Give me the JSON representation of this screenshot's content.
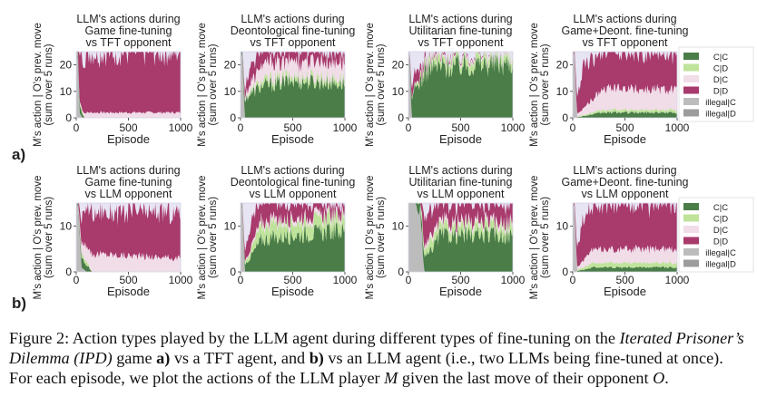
{
  "colors": {
    "CC": "#4a7d48",
    "CD": "#bfe39a",
    "DC": "#f1dde8",
    "DD": "#a83a6c",
    "illegalC": "#bcbcbc",
    "illegalD": "#9c9c9c",
    "bg": "#e7e4f3"
  },
  "row_labels": [
    "a)",
    "b)"
  ],
  "legend_labels": [
    "C|C",
    "C|D",
    "D|C",
    "D|D",
    "illegal|C",
    "illegal|D"
  ],
  "chart_data": [
    {
      "type": "area",
      "row": "a",
      "title": [
        "LLM's actions during",
        "Game fine-tuning",
        "vs TFT opponent"
      ],
      "xlabel": "Episode",
      "ylabel": [
        "M's action | O's prev. move",
        "(sum over 5 runs)"
      ],
      "xlim": [
        0,
        1000
      ],
      "ylim": [
        0,
        25
      ],
      "xticks": [
        0,
        500,
        1000
      ],
      "yticks": [
        0,
        10,
        20
      ],
      "series": [
        {
          "name": "illegal|C",
          "values": [
            {
              "x": 0,
              "y": 25
            },
            {
              "x": 15,
              "y": 25
            },
            {
              "x": 30,
              "y": 2
            },
            {
              "x": 60,
              "y": 0
            },
            {
              "x": 1000,
              "y": 0
            }
          ]
        },
        {
          "name": "C|C",
          "values": [
            {
              "x": 0,
              "y": 0
            },
            {
              "x": 30,
              "y": 3
            },
            {
              "x": 50,
              "y": 2
            },
            {
              "x": 80,
              "y": 0
            },
            {
              "x": 1000,
              "y": 0
            }
          ]
        },
        {
          "name": "C|D",
          "values": [
            {
              "x": 0,
              "y": 0
            },
            {
              "x": 30,
              "y": 1
            },
            {
              "x": 80,
              "y": 0
            },
            {
              "x": 1000,
              "y": 0
            }
          ]
        },
        {
          "name": "D|C",
          "values": [
            {
              "x": 0,
              "y": 0
            },
            {
              "x": 100,
              "y": 2
            },
            {
              "x": 1000,
              "y": 2
            }
          ]
        },
        {
          "name": "D|D",
          "values": [
            {
              "x": 0,
              "y": 0
            },
            {
              "x": 40,
              "y": 20
            },
            {
              "x": 100,
              "y": 23
            },
            {
              "x": 1000,
              "y": 23
            }
          ]
        }
      ]
    },
    {
      "type": "area",
      "row": "a",
      "title": [
        "LLM's actions during",
        "Deontological fine-tuning",
        "vs TFT opponent"
      ],
      "xlabel": "Episode",
      "ylabel": [
        "M's action | O's prev. move",
        "(sum over 5 runs)"
      ],
      "xlim": [
        0,
        1000
      ],
      "ylim": [
        0,
        25
      ],
      "xticks": [
        0,
        500,
        1000
      ],
      "yticks": [
        0,
        10,
        20
      ],
      "series": [
        {
          "name": "illegal|C",
          "values": [
            {
              "x": 0,
              "y": 25
            },
            {
              "x": 15,
              "y": 25
            },
            {
              "x": 40,
              "y": 0
            },
            {
              "x": 1000,
              "y": 0
            }
          ]
        },
        {
          "name": "C|C",
          "values": [
            {
              "x": 0,
              "y": 0
            },
            {
              "x": 60,
              "y": 8
            },
            {
              "x": 200,
              "y": 12
            },
            {
              "x": 500,
              "y": 14
            },
            {
              "x": 1000,
              "y": 13
            }
          ]
        },
        {
          "name": "C|D",
          "values": [
            {
              "x": 0,
              "y": 0
            },
            {
              "x": 200,
              "y": 2
            },
            {
              "x": 1000,
              "y": 2
            }
          ]
        },
        {
          "name": "D|C",
          "values": [
            {
              "x": 0,
              "y": 0
            },
            {
              "x": 200,
              "y": 6
            },
            {
              "x": 1000,
              "y": 6
            }
          ]
        },
        {
          "name": "D|D",
          "values": [
            {
              "x": 0,
              "y": 0
            },
            {
              "x": 100,
              "y": 6
            },
            {
              "x": 1000,
              "y": 4
            }
          ]
        }
      ]
    },
    {
      "type": "area",
      "row": "a",
      "title": [
        "LLM's actions during",
        "Utilitarian fine-tuning",
        "vs TFT opponent"
      ],
      "xlabel": "Episode",
      "ylabel": [
        "M's action | O's prev. move",
        "(sum over 5 runs)"
      ],
      "xlim": [
        0,
        1000
      ],
      "ylim": [
        0,
        25
      ],
      "xticks": [
        0,
        500,
        1000
      ],
      "yticks": [
        0,
        10,
        20
      ],
      "series": [
        {
          "name": "illegal|C",
          "values": [
            {
              "x": 0,
              "y": 25
            },
            {
              "x": 10,
              "y": 25
            },
            {
              "x": 30,
              "y": 0
            },
            {
              "x": 1000,
              "y": 0
            }
          ]
        },
        {
          "name": "C|C",
          "values": [
            {
              "x": 0,
              "y": 0
            },
            {
              "x": 50,
              "y": 10
            },
            {
              "x": 200,
              "y": 19
            },
            {
              "x": 500,
              "y": 20
            },
            {
              "x": 1000,
              "y": 21
            }
          ]
        },
        {
          "name": "C|D",
          "values": [
            {
              "x": 0,
              "y": 0
            },
            {
              "x": 200,
              "y": 3
            },
            {
              "x": 1000,
              "y": 3
            }
          ]
        },
        {
          "name": "D|C",
          "values": [
            {
              "x": 0,
              "y": 0
            },
            {
              "x": 200,
              "y": 1
            },
            {
              "x": 1000,
              "y": 1
            }
          ]
        },
        {
          "name": "D|D",
          "values": [
            {
              "x": 0,
              "y": 0
            },
            {
              "x": 50,
              "y": 5
            },
            {
              "x": 200,
              "y": 1
            },
            {
              "x": 1000,
              "y": 0
            }
          ]
        }
      ]
    },
    {
      "type": "area",
      "row": "a",
      "title": [
        "LLM's actions during",
        "Game+Deont. fine-tuning",
        "vs TFT opponent"
      ],
      "xlabel": "Episode",
      "ylabel": [
        "M's action | O's prev. move",
        "(sum over 5 runs)"
      ],
      "xlim": [
        0,
        1000
      ],
      "ylim": [
        0,
        25
      ],
      "xticks": [
        0,
        500,
        1000
      ],
      "yticks": [
        0,
        10,
        20
      ],
      "series": [
        {
          "name": "illegal|C",
          "values": [
            {
              "x": 0,
              "y": 25
            },
            {
              "x": 15,
              "y": 25
            },
            {
              "x": 40,
              "y": 0
            },
            {
              "x": 1000,
              "y": 0
            }
          ]
        },
        {
          "name": "C|C",
          "values": [
            {
              "x": 0,
              "y": 0
            },
            {
              "x": 300,
              "y": 2
            },
            {
              "x": 1000,
              "y": 2
            }
          ]
        },
        {
          "name": "C|D",
          "values": [
            {
              "x": 0,
              "y": 0
            },
            {
              "x": 300,
              "y": 1
            },
            {
              "x": 1000,
              "y": 1
            }
          ]
        },
        {
          "name": "D|C",
          "values": [
            {
              "x": 0,
              "y": 0
            },
            {
              "x": 300,
              "y": 8
            },
            {
              "x": 1000,
              "y": 8
            }
          ]
        },
        {
          "name": "D|D",
          "values": [
            {
              "x": 0,
              "y": 0
            },
            {
              "x": 100,
              "y": 15
            },
            {
              "x": 1000,
              "y": 14
            }
          ]
        }
      ]
    },
    {
      "type": "area",
      "row": "b",
      "title": [
        "LLM's actions during",
        "Game fine-tuning",
        "vs LLM opponent"
      ],
      "xlabel": "Episode",
      "ylabel": [
        "M's action | O's prev. move",
        "(sum over 5 runs)"
      ],
      "xlim": [
        0,
        1000
      ],
      "ylim": [
        0,
        15
      ],
      "xticks": [
        0,
        500,
        1000
      ],
      "yticks": [
        0,
        10
      ],
      "series": [
        {
          "name": "illegal|C",
          "values": [
            {
              "x": 0,
              "y": 15
            },
            {
              "x": 15,
              "y": 15
            },
            {
              "x": 50,
              "y": 1
            },
            {
              "x": 100,
              "y": 0
            },
            {
              "x": 1000,
              "y": 0
            }
          ]
        },
        {
          "name": "C|C",
          "values": [
            {
              "x": 0,
              "y": 0
            },
            {
              "x": 50,
              "y": 2
            },
            {
              "x": 120,
              "y": 1
            },
            {
              "x": 150,
              "y": 0
            },
            {
              "x": 1000,
              "y": 0
            }
          ]
        },
        {
          "name": "C|D",
          "values": [
            {
              "x": 0,
              "y": 0
            },
            {
              "x": 80,
              "y": 1
            },
            {
              "x": 150,
              "y": 0
            },
            {
              "x": 1000,
              "y": 0
            }
          ]
        },
        {
          "name": "D|C",
          "values": [
            {
              "x": 0,
              "y": 0
            },
            {
              "x": 100,
              "y": 4
            },
            {
              "x": 1000,
              "y": 3
            }
          ]
        },
        {
          "name": "D|D",
          "values": [
            {
              "x": 0,
              "y": 0
            },
            {
              "x": 100,
              "y": 9
            },
            {
              "x": 1000,
              "y": 10
            }
          ]
        }
      ]
    },
    {
      "type": "area",
      "row": "b",
      "title": [
        "LLM's actions during",
        "Deontological fine-tuning",
        "vs LLM opponent"
      ],
      "xlabel": "Episode",
      "ylabel": [
        "M's action | O's prev. move",
        "(sum over 5 runs)"
      ],
      "xlim": [
        0,
        1000
      ],
      "ylim": [
        0,
        15
      ],
      "xticks": [
        0,
        500,
        1000
      ],
      "yticks": [
        0,
        10
      ],
      "series": [
        {
          "name": "illegal|C",
          "values": [
            {
              "x": 0,
              "y": 15
            },
            {
              "x": 15,
              "y": 15
            },
            {
              "x": 40,
              "y": 0
            },
            {
              "x": 1000,
              "y": 0
            }
          ]
        },
        {
          "name": "C|C",
          "values": [
            {
              "x": 0,
              "y": 0
            },
            {
              "x": 200,
              "y": 7
            },
            {
              "x": 500,
              "y": 8
            },
            {
              "x": 1000,
              "y": 9
            }
          ]
        },
        {
          "name": "C|D",
          "values": [
            {
              "x": 0,
              "y": 0
            },
            {
              "x": 200,
              "y": 3
            },
            {
              "x": 1000,
              "y": 3
            }
          ]
        },
        {
          "name": "D|C",
          "values": [
            {
              "x": 0,
              "y": 0
            },
            {
              "x": 200,
              "y": 1
            },
            {
              "x": 1000,
              "y": 1
            }
          ]
        },
        {
          "name": "D|D",
          "values": [
            {
              "x": 0,
              "y": 0
            },
            {
              "x": 100,
              "y": 5
            },
            {
              "x": 1000,
              "y": 2
            }
          ]
        }
      ]
    },
    {
      "type": "area",
      "row": "b",
      "title": [
        "LLM's actions during",
        "Utilitarian fine-tuning",
        "vs LLM opponent"
      ],
      "xlabel": "Episode",
      "ylabel": [
        "M's action | O's prev. move",
        "(sum over 5 runs)"
      ],
      "xlim": [
        0,
        1000
      ],
      "ylim": [
        0,
        15
      ],
      "xticks": [
        0,
        500,
        1000
      ],
      "yticks": [
        0,
        10
      ],
      "series": [
        {
          "name": "illegal|C",
          "values": [
            {
              "x": 0,
              "y": 15
            },
            {
              "x": 100,
              "y": 15
            },
            {
              "x": 120,
              "y": 10
            },
            {
              "x": 150,
              "y": 0
            },
            {
              "x": 1000,
              "y": 0
            }
          ]
        },
        {
          "name": "C|C",
          "values": [
            {
              "x": 0,
              "y": 0
            },
            {
              "x": 200,
              "y": 4
            },
            {
              "x": 300,
              "y": 8
            },
            {
              "x": 1000,
              "y": 8
            }
          ]
        },
        {
          "name": "C|D",
          "values": [
            {
              "x": 0,
              "y": 0
            },
            {
              "x": 200,
              "y": 2
            },
            {
              "x": 1000,
              "y": 2
            }
          ]
        },
        {
          "name": "D|C",
          "values": [
            {
              "x": 0,
              "y": 0
            },
            {
              "x": 200,
              "y": 1
            },
            {
              "x": 1000,
              "y": 1
            }
          ]
        },
        {
          "name": "D|D",
          "values": [
            {
              "x": 0,
              "y": 0
            },
            {
              "x": 150,
              "y": 6
            },
            {
              "x": 300,
              "y": 4
            },
            {
              "x": 1000,
              "y": 4
            }
          ]
        }
      ]
    },
    {
      "type": "area",
      "row": "b",
      "title": [
        "LLM's actions during",
        "Game+Deont. fine-tuning",
        "vs LLM opponent"
      ],
      "xlabel": "Episode",
      "ylabel": [
        "M's action | O's prev. move",
        "(sum over 5 runs)"
      ],
      "xlim": [
        0,
        1000
      ],
      "ylim": [
        0,
        15
      ],
      "xticks": [
        0,
        500,
        1000
      ],
      "yticks": [
        0,
        10
      ],
      "series": [
        {
          "name": "illegal|C",
          "values": [
            {
              "x": 0,
              "y": 15
            },
            {
              "x": 15,
              "y": 15
            },
            {
              "x": 40,
              "y": 0
            },
            {
              "x": 1000,
              "y": 0
            }
          ]
        },
        {
          "name": "C|C",
          "values": [
            {
              "x": 0,
              "y": 0
            },
            {
              "x": 200,
              "y": 1
            },
            {
              "x": 1000,
              "y": 1
            }
          ]
        },
        {
          "name": "C|D",
          "values": [
            {
              "x": 0,
              "y": 0
            },
            {
              "x": 200,
              "y": 1
            },
            {
              "x": 1000,
              "y": 1
            }
          ]
        },
        {
          "name": "D|C",
          "values": [
            {
              "x": 0,
              "y": 0
            },
            {
              "x": 200,
              "y": 3
            },
            {
              "x": 1000,
              "y": 3
            }
          ]
        },
        {
          "name": "D|D",
          "values": [
            {
              "x": 0,
              "y": 0
            },
            {
              "x": 100,
              "y": 10
            },
            {
              "x": 1000,
              "y": 10
            }
          ]
        }
      ]
    }
  ],
  "caption": {
    "p1": "Figure 2: Action types played by the LLM agent during different types of fine-tuning on the ",
    "ipd": "Iterated Prisoner’s Dilemma (IPD)",
    "p2": " game ",
    "a": "a)",
    "p3": " vs a TFT agent, and ",
    "b": "b)",
    "p4": " vs an LLM agent (i.e., two LLMs being fine-tuned at once). For each episode, we plot the actions of the LLM player ",
    "M": "M",
    "p5": " given the last move of their opponent ",
    "O": "O",
    "p6": "."
  }
}
